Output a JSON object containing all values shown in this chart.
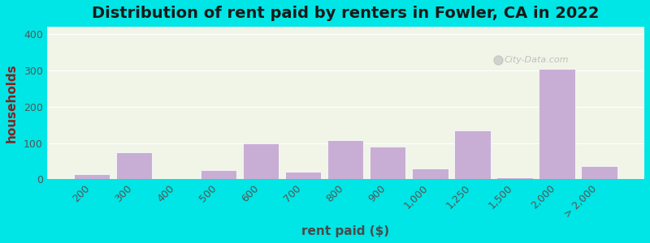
{
  "title": "Distribution of rent paid by renters in Fowler, CA in 2022",
  "xlabel": "rent paid ($)",
  "ylabel": "households",
  "bar_labels": [
    "200",
    "300",
    "400",
    "500",
    "600",
    "700",
    "800",
    "900",
    "1,000",
    "1,250",
    "1,500",
    "2,000",
    "> 2,000"
  ],
  "bar_values": [
    15,
    75,
    0,
    25,
    100,
    20,
    108,
    90,
    30,
    135,
    5,
    305,
    37
  ],
  "bar_color": "#c8aed4",
  "bar_edge_color": "#ffffff",
  "ylim": [
    0,
    420
  ],
  "yticks": [
    0,
    100,
    200,
    300,
    400
  ],
  "title_fontsize": 14,
  "axis_label_fontsize": 11,
  "tick_fontsize": 9,
  "background_color": "#00e5e5",
  "plot_bg_top": "#f0f5e8",
  "plot_bg_bottom": "#e8f0e0",
  "ylabel_color": "#8b2020",
  "xlabel_color": "#4a4a4a",
  "title_color": "#1a1a1a",
  "watermark_text": "City-Data.com"
}
